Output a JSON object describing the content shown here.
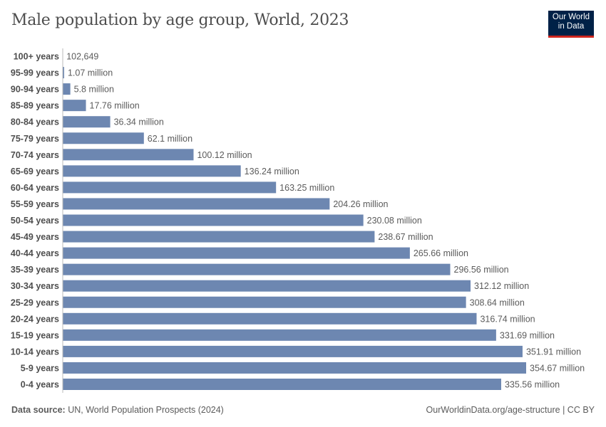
{
  "title": "Male population by age group, World, 2023",
  "logo": {
    "line1": "Our World",
    "line2": "in Data"
  },
  "footer": {
    "source_label": "Data source:",
    "source": "UN, World Population Prospects (2024)",
    "link": "OurWorldinData.org/age-structure",
    "license": "CC BY"
  },
  "colors": {
    "bar": "#6d87b1",
    "logo_bg": "#002147",
    "logo_accent": "#ce261e"
  },
  "chart_data": {
    "type": "bar",
    "orientation": "horizontal",
    "categories": [
      "100+ years",
      "95-99 years",
      "90-94 years",
      "85-89 years",
      "80-84 years",
      "75-79 years",
      "70-74 years",
      "65-69 years",
      "60-64 years",
      "55-59 years",
      "50-54 years",
      "45-49 years",
      "40-44 years",
      "35-39 years",
      "30-34 years",
      "25-29 years",
      "20-24 years",
      "15-19 years",
      "10-14 years",
      "5-9 years",
      "0-4 years"
    ],
    "values": [
      102649,
      1070000,
      5800000,
      17760000,
      36340000,
      62100000,
      100120000,
      136240000,
      163250000,
      204260000,
      230080000,
      238670000,
      265660000,
      296560000,
      312120000,
      308640000,
      316740000,
      331690000,
      351910000,
      354670000,
      335560000
    ],
    "labels": [
      "102,649",
      "1.07 million",
      "5.8 million",
      "17.76 million",
      "36.34 million",
      "62.1 million",
      "100.12 million",
      "136.24 million",
      "163.25 million",
      "204.26 million",
      "230.08 million",
      "238.67 million",
      "265.66 million",
      "296.56 million",
      "312.12 million",
      "308.64 million",
      "316.74 million",
      "331.69 million",
      "351.91 million",
      "354.67 million",
      "335.56 million"
    ],
    "grid": false,
    "legend": "none"
  }
}
